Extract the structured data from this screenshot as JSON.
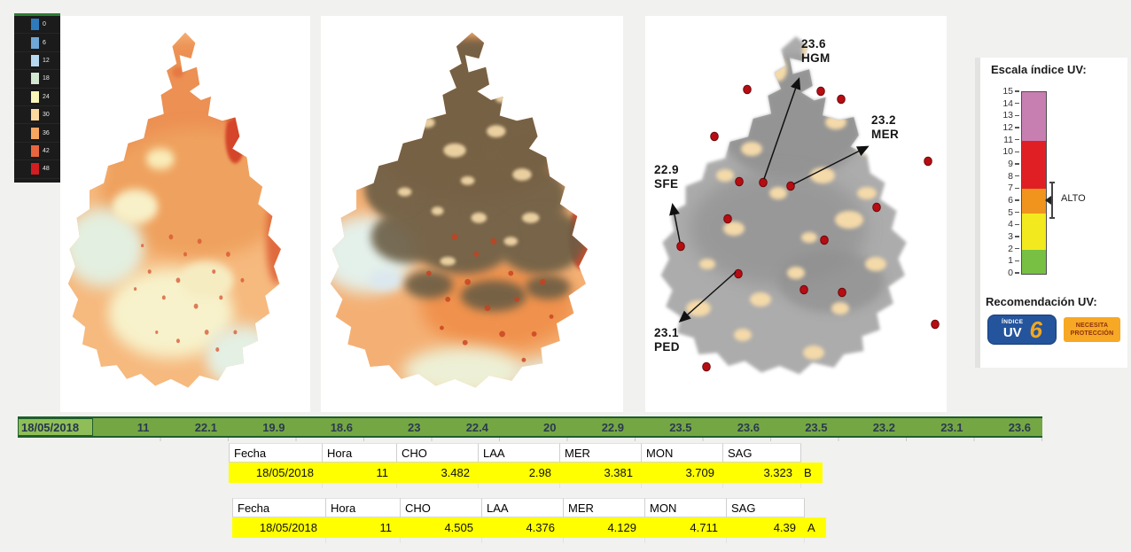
{
  "temperature_legend": {
    "items": [
      {
        "label": "0",
        "color": "#2d7bbc"
      },
      {
        "label": "6",
        "color": "#6fa8d6"
      },
      {
        "label": "12",
        "color": "#b7d9ef"
      },
      {
        "label": "18",
        "color": "#d3e7d1"
      },
      {
        "label": "24",
        "color": "#fbf7ba"
      },
      {
        "label": "30",
        "color": "#fbd99f"
      },
      {
        "label": "36",
        "color": "#f7a660"
      },
      {
        "label": "42",
        "color": "#e8653e"
      },
      {
        "label": "48",
        "color": "#d41d21"
      }
    ]
  },
  "uv_scale": {
    "title": "Escala índice UV:",
    "ticks": [
      15,
      14,
      13,
      12,
      11,
      10,
      9,
      8,
      7,
      6,
      5,
      4,
      3,
      2,
      1,
      0
    ],
    "segments": [
      {
        "from": 11,
        "to": 15,
        "color": "#c77fb1"
      },
      {
        "from": 7,
        "to": 11,
        "color": "#e01f24"
      },
      {
        "from": 5,
        "to": 7,
        "color": "#f0941e"
      },
      {
        "from": 2,
        "to": 5,
        "color": "#f2ea1f"
      },
      {
        "from": 0,
        "to": 2,
        "color": "#77c044"
      }
    ],
    "marker_label": "ALTO",
    "recommendation_title": "Recomendación UV:",
    "index_badge": {
      "line1": "ÍNDICE",
      "line2": "UV",
      "value": "6"
    },
    "protection_badge": [
      "NECESITA",
      "PROTECCIÓN"
    ]
  },
  "stations_map": {
    "dots": [
      [
        115,
        83
      ],
      [
        198,
        85
      ],
      [
        221,
        94
      ],
      [
        78,
        136
      ],
      [
        319,
        164
      ],
      [
        106,
        187
      ],
      [
        133,
        188
      ],
      [
        164,
        192
      ],
      [
        261,
        216
      ],
      [
        93,
        229
      ],
      [
        202,
        253
      ],
      [
        40,
        260
      ],
      [
        105,
        291
      ],
      [
        179,
        309
      ],
      [
        222,
        312
      ],
      [
        327,
        348
      ],
      [
        69,
        396
      ]
    ],
    "annotations": [
      {
        "value": "23.6",
        "code": "HGM",
        "label": [
          176,
          36
        ],
        "from": [
          134,
          184
        ],
        "to": [
          173,
          72
        ]
      },
      {
        "value": "23.2",
        "code": "MER",
        "label": [
          255,
          122
        ],
        "from": [
          167,
          190
        ],
        "to": [
          250,
          148
        ]
      },
      {
        "value": "22.9",
        "code": "SFE",
        "label": [
          10,
          178
        ],
        "from": [
          39,
          255
        ],
        "to": [
          31,
          214
        ]
      },
      {
        "value": "23.1",
        "code": "PED",
        "label": [
          10,
          362
        ],
        "from": [
          102,
          289
        ],
        "to": [
          40,
          344
        ]
      }
    ]
  },
  "hourly_bar": {
    "date": "18/05/2018",
    "values": [
      "11",
      "22.1",
      "19.9",
      "18.6",
      "23",
      "22.4",
      "20",
      "22.9",
      "23.5",
      "23.6",
      "23.5",
      "23.2",
      "23.1",
      "23.6"
    ]
  },
  "tables": [
    {
      "headers": [
        "Fecha",
        "Hora",
        "CHO",
        "LAA",
        "MER",
        "MON",
        "SAG"
      ],
      "row": [
        "18/05/2018",
        "11",
        "3.482",
        "2.98",
        "3.381",
        "3.709",
        "3.323"
      ],
      "suffix": "B"
    },
    {
      "headers": [
        "Fecha",
        "Hora",
        "CHO",
        "LAA",
        "MER",
        "MON",
        "SAG"
      ],
      "row": [
        "18/05/2018",
        "11",
        "4.505",
        "4.376",
        "4.129",
        "4.711",
        "4.39"
      ],
      "suffix": "A"
    }
  ],
  "colors": {
    "bar_green": "#74a744",
    "bar_green_selected": "#8fbe58",
    "bar_border_green": "#1e5e2c",
    "highlight_yellow": "#ffff00",
    "station_dot": "#b70d12"
  }
}
